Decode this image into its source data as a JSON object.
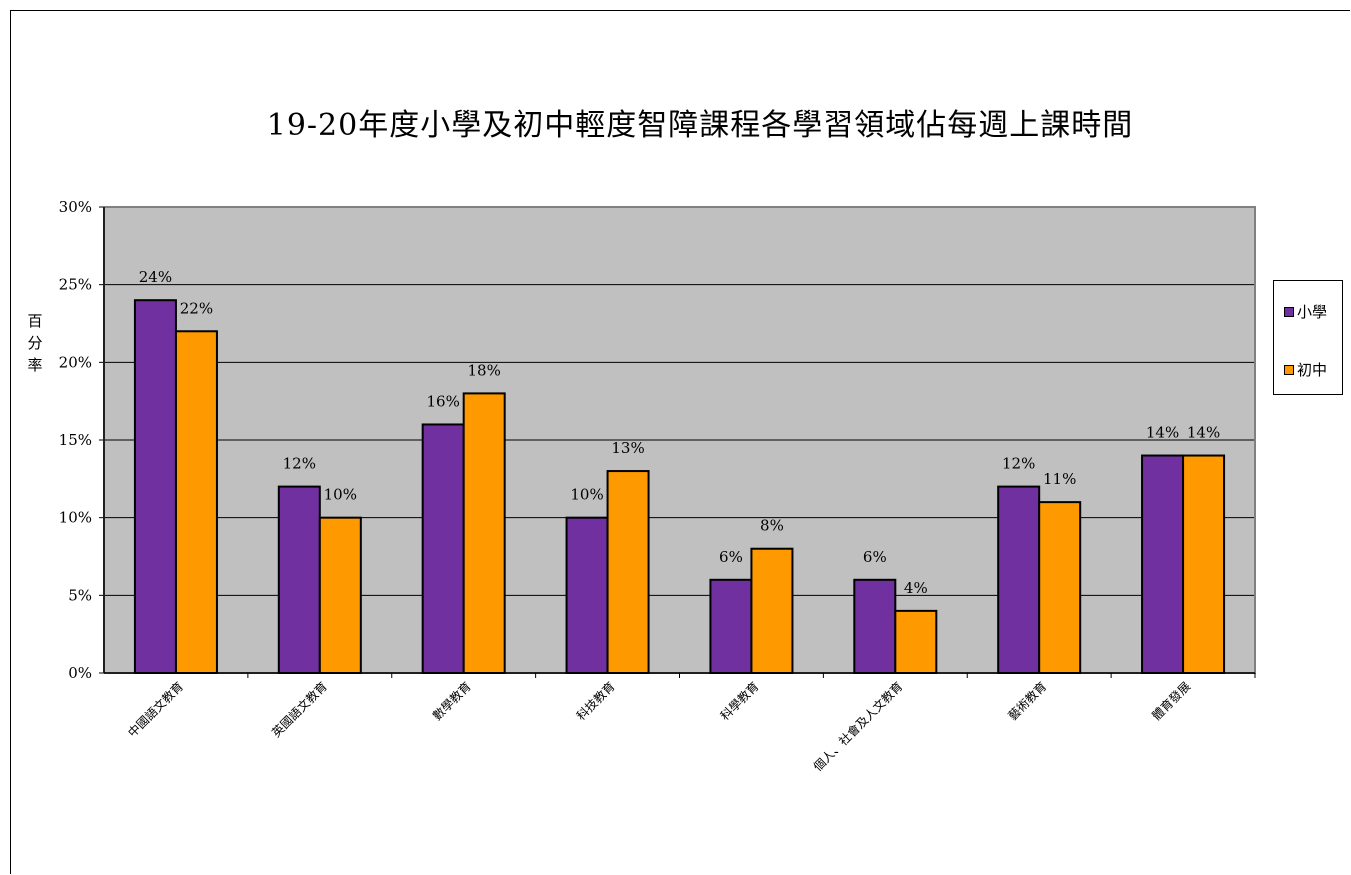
{
  "chart_data": {
    "type": "bar",
    "title": "19-20年度小學及初中輕度智障課程各學習領域佔每週上課時間",
    "ylabel": "百分率",
    "xlabel": "",
    "ylim": [
      0,
      30
    ],
    "yticks": [
      "0%",
      "5%",
      "10%",
      "15%",
      "20%",
      "25%",
      "30%"
    ],
    "grid": true,
    "legend_position": "right",
    "categories": [
      "中國語文教育",
      "英國語文教育",
      "數學教育",
      "科技教育",
      "科學教育",
      "個人、社會及人文教育",
      "藝術教育",
      "體育發展"
    ],
    "series": [
      {
        "name": "小學",
        "color": "#7030a0",
        "values": [
          24,
          12,
          16,
          10,
          6,
          6,
          12,
          14
        ],
        "labels": [
          "24%",
          "12%",
          "16%",
          "10%",
          "6%",
          "6%",
          "12%",
          "14%"
        ]
      },
      {
        "name": "初中",
        "color": "#ff9900",
        "values": [
          22,
          10,
          18,
          13,
          8,
          4,
          11,
          14
        ],
        "labels": [
          "22%",
          "10%",
          "18%",
          "13%",
          "8%",
          "4%",
          "11%",
          "14%"
        ]
      }
    ],
    "plot_background": "#c0c0c0"
  }
}
